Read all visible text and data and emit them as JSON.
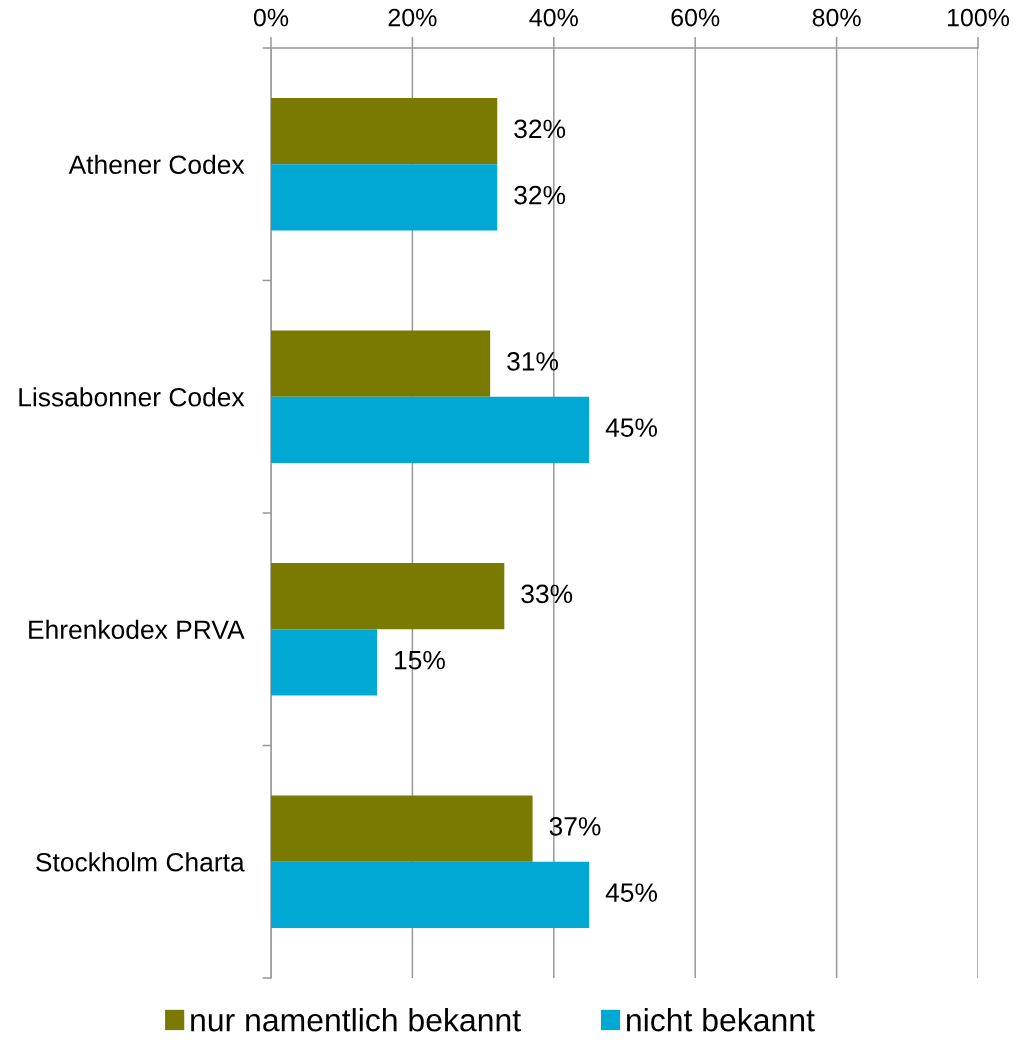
{
  "chart_data": {
    "type": "bar",
    "orientation": "horizontal",
    "categories": [
      "Athener Codex",
      "Lissabonner Codex",
      "Ehrenkodex PRVA",
      "Stockholm Charta"
    ],
    "series": [
      {
        "name": "nur namentlich bekannt",
        "color": "#7a7a00",
        "values": [
          32,
          31,
          33,
          37
        ],
        "value_labels": [
          "32%",
          "31%",
          "33%",
          "37%"
        ]
      },
      {
        "name": "nicht bekannt",
        "color": "#00a9d4",
        "values": [
          32,
          45,
          15,
          45
        ],
        "value_labels": [
          "32%",
          "45%",
          "15%",
          "45%"
        ]
      }
    ],
    "xlim": [
      0,
      100
    ],
    "xticks": [
      {
        "value": 0,
        "label": "0%"
      },
      {
        "value": 20,
        "label": "20%"
      },
      {
        "value": 40,
        "label": "40%"
      },
      {
        "value": 60,
        "label": "60%"
      },
      {
        "value": 80,
        "label": "80%"
      },
      {
        "value": 100,
        "label": "100%"
      }
    ],
    "grid": "x",
    "legend": "bottom"
  }
}
